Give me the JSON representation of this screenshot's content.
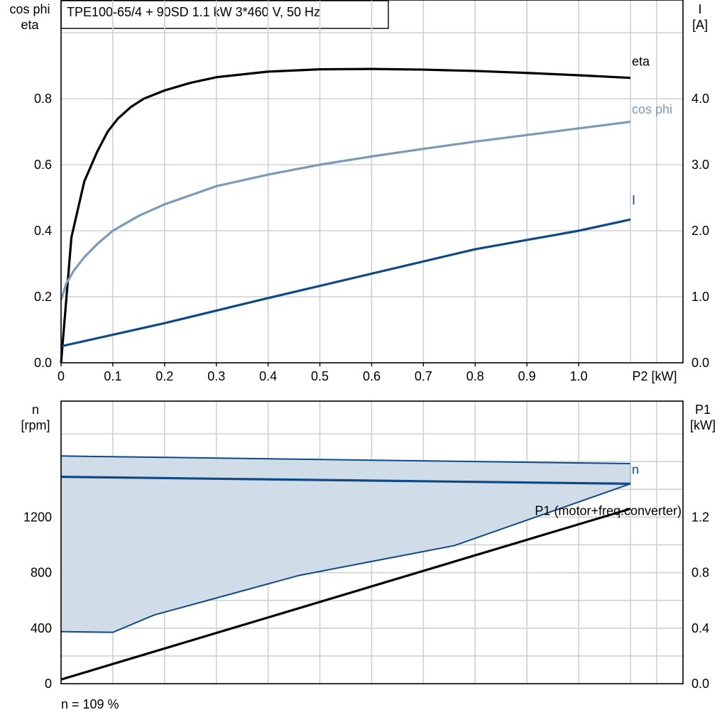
{
  "header": {
    "title": "TPE100-65/4 + 90SD   1.1 kW   3*460 V, 50 Hz"
  },
  "footer": {
    "note": "n = 109 %"
  },
  "colors": {
    "eta": "#000000",
    "cosphi": "#7a9ab8",
    "current": "#0e4a86",
    "n": "#0e4a86",
    "n_area": "#d0dce8",
    "p1": "#000000",
    "grid": "#d0d0d0"
  },
  "chart_data": [
    {
      "type": "line",
      "x_axis": {
        "label": "P2 [kW]",
        "range": [
          0,
          1.1
        ],
        "ticks": [
          "0",
          "0.1",
          "0.2",
          "0.3",
          "0.4",
          "0.5",
          "0.6",
          "0.7",
          "0.8",
          "0.9",
          "1.0"
        ]
      },
      "y_left": {
        "label": [
          "cos phi",
          "eta"
        ],
        "range": [
          0,
          1.0
        ],
        "ticks": [
          "0.0",
          "0.2",
          "0.4",
          "0.6",
          "0.8"
        ]
      },
      "y_right": {
        "label": [
          "I",
          "[A]"
        ],
        "range": [
          0,
          5.0
        ],
        "ticks": [
          "0.0",
          "1.0",
          "2.0",
          "3.0",
          "4.0"
        ]
      },
      "grid": true,
      "series": [
        {
          "name": "eta",
          "axis": "left",
          "x": [
            0,
            0.02,
            0.045,
            0.07,
            0.09,
            0.11,
            0.135,
            0.16,
            0.2,
            0.25,
            0.3,
            0.4,
            0.5,
            0.6,
            0.7,
            0.8,
            0.9,
            1.0,
            1.1
          ],
          "y": [
            0.0,
            0.38,
            0.55,
            0.64,
            0.7,
            0.74,
            0.775,
            0.8,
            0.825,
            0.848,
            0.865,
            0.882,
            0.889,
            0.89,
            0.888,
            0.884,
            0.878,
            0.871,
            0.863
          ]
        },
        {
          "name": "cos phi",
          "axis": "left",
          "x": [
            0,
            0.01,
            0.025,
            0.045,
            0.07,
            0.1,
            0.15,
            0.2,
            0.3,
            0.4,
            0.5,
            0.6,
            0.7,
            0.8,
            0.9,
            1.0,
            1.1
          ],
          "y": [
            0.19,
            0.24,
            0.28,
            0.32,
            0.36,
            0.4,
            0.445,
            0.48,
            0.535,
            0.57,
            0.6,
            0.625,
            0.648,
            0.67,
            0.69,
            0.71,
            0.73
          ]
        },
        {
          "name": "I",
          "axis": "right",
          "x": [
            0,
            0.2,
            0.4,
            0.6,
            0.8,
            1.0,
            1.1
          ],
          "y": [
            0.25,
            0.6,
            0.98,
            1.35,
            1.72,
            2.0,
            2.17
          ]
        }
      ]
    },
    {
      "type": "line",
      "x_axis": {
        "range": [
          0,
          1.1
        ]
      },
      "y_left": {
        "label": [
          "n",
          "[rpm]"
        ],
        "range": [
          0,
          1800
        ],
        "ticks": [
          "0",
          "400",
          "800",
          "1200"
        ]
      },
      "y_right": {
        "label": [
          "P1",
          "[kW]"
        ],
        "range": [
          0,
          1.8
        ],
        "ticks": [
          "0.0",
          "0.4",
          "0.8",
          "1.2"
        ]
      },
      "grid": true,
      "operating_range": {
        "upper": {
          "x": [
            0,
            1.1
          ],
          "y": [
            1640,
            1585
          ]
        },
        "lower": {
          "x": [
            0,
            0.1,
            0.18,
            0.46,
            0.76,
            1.1
          ],
          "y": [
            375,
            370,
            495,
            780,
            995,
            1440
          ]
        }
      },
      "series": [
        {
          "name": "n",
          "axis": "left",
          "x": [
            0,
            1.1
          ],
          "y": [
            1490,
            1440
          ]
        },
        {
          "name": "P1 (motor+freq.converter)",
          "axis": "right",
          "x": [
            0,
            1.1
          ],
          "y": [
            0.03,
            1.26
          ]
        }
      ]
    }
  ]
}
